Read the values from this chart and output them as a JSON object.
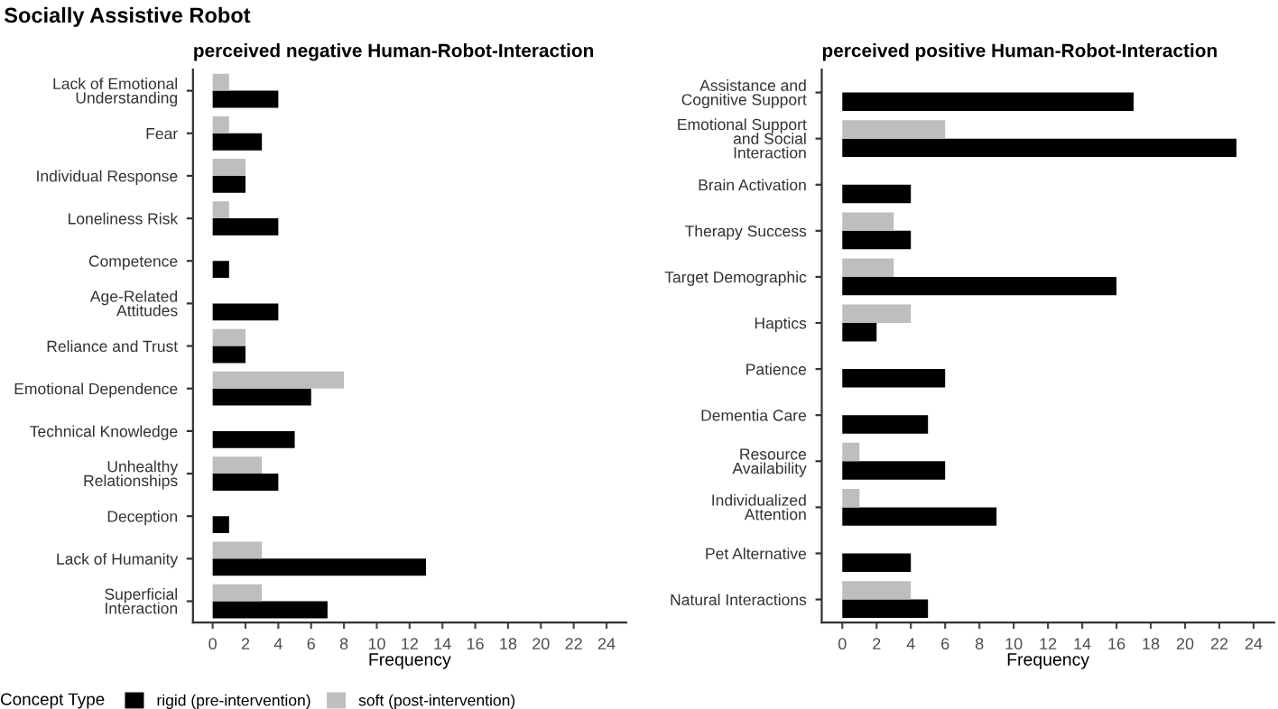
{
  "chart_data": [
    {
      "type": "bar",
      "orientation": "horizontal",
      "title": "perceived negative Human-Robot-Interaction",
      "xlabel": "Frequency",
      "legend_title": "Concept Type",
      "legend": "bottom",
      "grid": false,
      "annotations": [
        "Socially Assistive Robot"
      ],
      "categories": [
        "Lack of Emotional\nUnderstanding",
        "Fear",
        "Individual Response",
        "Loneliness Risk",
        "Competence",
        "Age-Related\nAttitudes",
        "Reliance and Trust",
        "Emotional Dependence",
        "Technical Knowledge",
        "Unhealthy\nRelationships",
        "Deception",
        "Lack of Humanity",
        "Superficial\nInteraction"
      ],
      "xlim": [
        -1.2,
        25.2
      ],
      "xticks": [
        0,
        2,
        4,
        6,
        8,
        10,
        12,
        14,
        16,
        18,
        20,
        22,
        24
      ],
      "series": [
        {
          "name": "rigid (pre-intervention)",
          "color": "#000000",
          "values": [
            4,
            3,
            2,
            4,
            1,
            4,
            2,
            6,
            5,
            4,
            1,
            13,
            7
          ]
        },
        {
          "name": "soft (post-intervention)",
          "color": "#bebebe",
          "values": [
            1,
            1,
            2,
            1,
            null,
            null,
            2,
            8,
            null,
            3,
            null,
            3,
            3
          ]
        }
      ]
    },
    {
      "type": "bar",
      "orientation": "horizontal",
      "title": "perceived positive Human-Robot-Interaction",
      "xlabel": "Frequency",
      "grid": false,
      "categories": [
        "Assistance and\nCognitive Support",
        "Emotional Support\nand Social\nInteraction",
        "Brain Activation",
        "Therapy Success",
        "Target Demographic",
        "Haptics",
        "Patience",
        "Dementia Care",
        "Resource\nAvailability",
        "Individualized\nAttention",
        "Pet Alternative",
        "Natural Interactions"
      ],
      "xlim": [
        -1.2,
        25.2
      ],
      "xticks": [
        0,
        2,
        4,
        6,
        8,
        10,
        12,
        14,
        16,
        18,
        20,
        22,
        24
      ],
      "series": [
        {
          "color": "#000000",
          "values": [
            17,
            23,
            4,
            4,
            16,
            2,
            6,
            5,
            6,
            9,
            4,
            5
          ]
        },
        {
          "color": "#bebebe",
          "values": [
            null,
            6,
            null,
            3,
            3,
            4,
            null,
            null,
            1,
            1,
            null,
            4
          ]
        }
      ]
    }
  ]
}
